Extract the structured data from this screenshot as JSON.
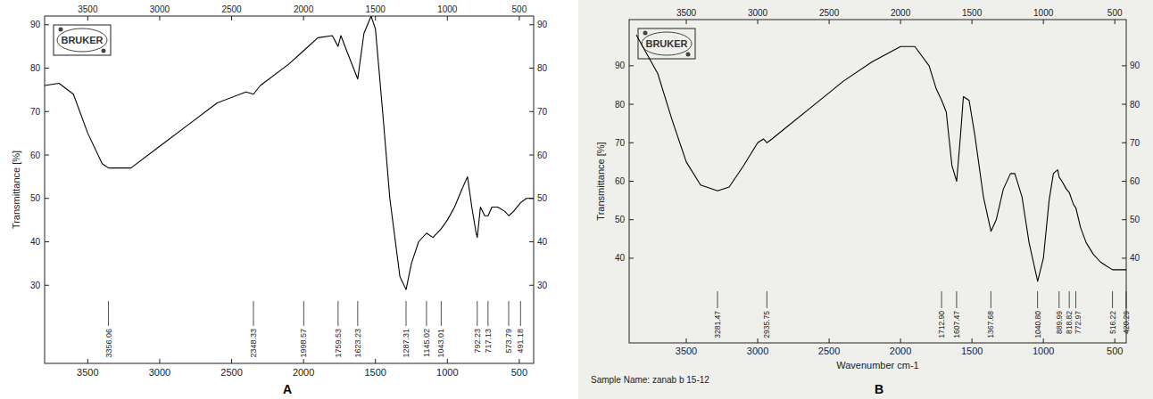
{
  "chart_data": [
    {
      "type": "line",
      "panel": "A",
      "logo": "BRUKER",
      "y_label": "Transmittance [%]",
      "xlim": [
        3800,
        400
      ],
      "xticks": [
        3500,
        3000,
        2500,
        2000,
        1500,
        1000,
        500
      ],
      "ylim": [
        12,
        92
      ],
      "yticks": [
        30,
        40,
        50,
        60,
        70,
        80,
        90
      ],
      "grid": false,
      "color": "#000000",
      "x": [
        3800,
        3700,
        3600,
        3500,
        3400,
        3356,
        3200,
        3000,
        2800,
        2600,
        2400,
        2348,
        2300,
        2100,
        2000,
        1900,
        1800,
        1760,
        1740,
        1700,
        1623,
        1580,
        1530,
        1500,
        1450,
        1400,
        1330,
        1287,
        1250,
        1200,
        1145,
        1100,
        1043,
        1000,
        950,
        900,
        860,
        830,
        800,
        792,
        770,
        740,
        717,
        690,
        650,
        600,
        573,
        540,
        491,
        450,
        400
      ],
      "values": [
        76,
        76.5,
        74,
        65,
        58,
        57,
        57,
        62,
        67,
        72,
        74.5,
        74,
        76,
        81,
        84,
        87,
        87.5,
        85,
        87.5,
        84,
        77.5,
        88,
        92,
        89,
        70,
        50,
        32,
        29,
        35,
        40,
        42,
        41,
        43,
        45,
        48,
        52,
        55,
        48,
        42,
        41,
        48,
        46,
        46,
        48,
        48,
        47,
        46,
        47,
        49,
        50,
        50
      ],
      "peaks": [
        {
          "value": 3356.06,
          "label": "3356.06"
        },
        {
          "value": 2348.33,
          "label": "2348.33"
        },
        {
          "value": 1998.57,
          "label": "1998.57"
        },
        {
          "value": 1759.53,
          "label": "1759.53"
        },
        {
          "value": 1623.23,
          "label": "1623.23"
        },
        {
          "value": 1287.31,
          "label": "1287.31"
        },
        {
          "value": 1145.02,
          "label": "1145.02"
        },
        {
          "value": 1043.01,
          "label": "1043.01"
        },
        {
          "value": 792.23,
          "label": "792.23"
        },
        {
          "value": 717.13,
          "label": "717.13"
        },
        {
          "value": 573.79,
          "label": "573.79"
        },
        {
          "value": 491.18,
          "label": "491.18"
        }
      ]
    },
    {
      "type": "line",
      "panel": "B",
      "logo": "BRUKER",
      "y_label": "Transmittance [%]",
      "x_label": "Wavenumber cm-1",
      "sample_name": "Sample Name: zanab b 15-12",
      "xlim": [
        3900,
        420
      ],
      "xticks": [
        3500,
        3000,
        2500,
        2000,
        1500,
        1000,
        500
      ],
      "ylim": [
        18,
        102
      ],
      "yticks": [
        40,
        50,
        60,
        70,
        80,
        90
      ],
      "grid": false,
      "color": "#000000",
      "x": [
        3850,
        3700,
        3600,
        3500,
        3400,
        3281,
        3200,
        3100,
        3000,
        2960,
        2935,
        2900,
        2800,
        2600,
        2400,
        2200,
        2000,
        1900,
        1800,
        1750,
        1712,
        1680,
        1640,
        1607,
        1580,
        1560,
        1520,
        1480,
        1420,
        1367,
        1330,
        1280,
        1230,
        1200,
        1150,
        1100,
        1040,
        1000,
        960,
        930,
        900,
        889,
        870,
        840,
        818,
        790,
        772,
        740,
        700,
        650,
        600,
        560,
        516,
        480,
        450,
        420
      ],
      "values": [
        98,
        88,
        76,
        65,
        59,
        57.5,
        58.5,
        64,
        70,
        71,
        70,
        71,
        74,
        80,
        86,
        91,
        95,
        95,
        90,
        84,
        81,
        78,
        64,
        60,
        72,
        82,
        81,
        72,
        56,
        47,
        50,
        58,
        62,
        62,
        56,
        44,
        34,
        40,
        55,
        62,
        63,
        61,
        60,
        58,
        57,
        54,
        53,
        48,
        44,
        41,
        39,
        38,
        37,
        37,
        37,
        37
      ],
      "peaks": [
        {
          "value": 3281.47,
          "label": "3281.47"
        },
        {
          "value": 2935.75,
          "label": "2935.75"
        },
        {
          "value": 1712.9,
          "label": "1712.90"
        },
        {
          "value": 1607.47,
          "label": "1607.47"
        },
        {
          "value": 1367.68,
          "label": "1367.68"
        },
        {
          "value": 1040.8,
          "label": "1040.80"
        },
        {
          "value": 889.99,
          "label": "889.99"
        },
        {
          "value": 818.82,
          "label": "818.82"
        },
        {
          "value": 772.97,
          "label": "772.97"
        },
        {
          "value": 516.22,
          "label": "516.22"
        },
        {
          "value": 420.29,
          "label": "420.29"
        }
      ]
    }
  ]
}
